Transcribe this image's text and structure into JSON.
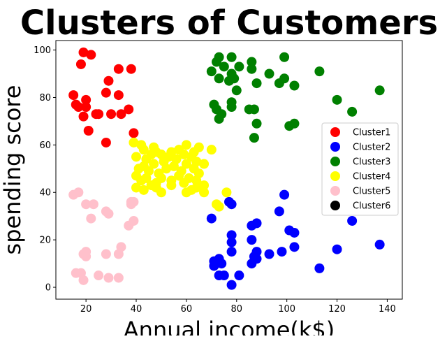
{
  "chart_data": {
    "type": "scatter",
    "title": "Clusters of Customers",
    "xlabel": "Annual income(k$)",
    "ylabel": "spending score",
    "xlim": [
      8,
      146
    ],
    "ylim": [
      -5,
      104
    ],
    "xticks": [
      20,
      40,
      60,
      80,
      100,
      120,
      140
    ],
    "yticks": [
      0,
      20,
      40,
      60,
      80,
      100
    ],
    "grid": false,
    "legend_position": "right",
    "series": [
      {
        "name": "Cluster1",
        "color": "#ff0000",
        "points": [
          [
            19,
            99
          ],
          [
            22,
            98
          ],
          [
            18,
            94
          ],
          [
            33,
            92
          ],
          [
            38,
            92
          ],
          [
            29,
            87
          ],
          [
            33,
            81
          ],
          [
            15,
            81
          ],
          [
            20,
            79
          ],
          [
            28,
            82
          ],
          [
            16,
            77
          ],
          [
            17,
            76
          ],
          [
            20,
            76
          ],
          [
            24,
            73
          ],
          [
            25,
            73
          ],
          [
            30,
            73
          ],
          [
            34,
            73
          ],
          [
            37,
            75
          ],
          [
            19,
            72
          ],
          [
            21,
            66
          ],
          [
            39,
            65
          ],
          [
            28,
            61
          ]
        ]
      },
      {
        "name": "Cluster2",
        "color": "#0000ff",
        "points": [
          [
            70,
            29
          ],
          [
            77,
            36
          ],
          [
            78,
            35
          ],
          [
            99,
            39
          ],
          [
            97,
            32
          ],
          [
            86,
            26
          ],
          [
            88,
            27
          ],
          [
            126,
            28
          ],
          [
            101,
            24
          ],
          [
            103,
            23
          ],
          [
            78,
            22
          ],
          [
            78,
            19
          ],
          [
            78,
            15
          ],
          [
            86,
            20
          ],
          [
            88,
            15
          ],
          [
            88,
            12
          ],
          [
            93,
            14
          ],
          [
            98,
            15
          ],
          [
            103,
            17
          ],
          [
            120,
            16
          ],
          [
            137,
            18
          ],
          [
            71,
            11
          ],
          [
            73,
            12
          ],
          [
            71,
            9
          ],
          [
            74,
            10
          ],
          [
            86,
            10
          ],
          [
            87,
            13
          ],
          [
            73,
            5
          ],
          [
            75,
            5
          ],
          [
            81,
            5
          ],
          [
            113,
            8
          ],
          [
            78,
            1
          ]
        ]
      },
      {
        "name": "Cluster3",
        "color": "#008000",
        "points": [
          [
            73,
            97
          ],
          [
            78,
            97
          ],
          [
            99,
            97
          ],
          [
            72,
            95
          ],
          [
            86,
            95
          ],
          [
            75,
            93
          ],
          [
            81,
            93
          ],
          [
            70,
            91
          ],
          [
            86,
            92
          ],
          [
            93,
            90
          ],
          [
            113,
            91
          ],
          [
            99,
            88
          ],
          [
            78,
            90
          ],
          [
            79,
            88
          ],
          [
            73,
            88
          ],
          [
            77,
            87
          ],
          [
            88,
            86
          ],
          [
            97,
            86
          ],
          [
            103,
            85
          ],
          [
            80,
            83
          ],
          [
            120,
            79
          ],
          [
            137,
            83
          ],
          [
            71,
            77
          ],
          [
            78,
            78
          ],
          [
            72,
            75
          ],
          [
            78,
            76
          ],
          [
            85,
            75
          ],
          [
            87,
            75
          ],
          [
            74,
            73
          ],
          [
            126,
            74
          ],
          [
            73,
            71
          ],
          [
            88,
            69
          ],
          [
            101,
            68
          ],
          [
            103,
            69
          ],
          [
            87,
            63
          ]
        ]
      },
      {
        "name": "Cluster4",
        "color": "#ffff00",
        "points": [
          [
            39,
            61
          ],
          [
            42,
            60
          ],
          [
            43,
            58
          ],
          [
            47,
            59
          ],
          [
            50,
            56
          ],
          [
            54,
            57
          ],
          [
            57,
            58
          ],
          [
            60,
            60
          ],
          [
            63,
            57
          ],
          [
            65,
            59
          ],
          [
            70,
            58
          ],
          [
            40,
            55
          ],
          [
            44,
            54
          ],
          [
            46,
            56
          ],
          [
            48,
            57
          ],
          [
            51,
            53
          ],
          [
            53,
            55
          ],
          [
            56,
            54
          ],
          [
            59,
            56
          ],
          [
            62,
            55
          ],
          [
            64,
            53
          ],
          [
            67,
            52
          ],
          [
            41,
            50
          ],
          [
            43,
            51
          ],
          [
            45,
            49
          ],
          [
            47,
            52
          ],
          [
            49,
            48
          ],
          [
            52,
            50
          ],
          [
            55,
            51
          ],
          [
            58,
            49
          ],
          [
            60,
            52
          ],
          [
            63,
            50
          ],
          [
            65,
            48
          ],
          [
            40,
            47
          ],
          [
            42,
            45
          ],
          [
            44,
            46
          ],
          [
            48,
            44
          ],
          [
            50,
            46
          ],
          [
            54,
            45
          ],
          [
            57,
            47
          ],
          [
            59,
            44
          ],
          [
            61,
            46
          ],
          [
            64,
            45
          ],
          [
            67,
            43
          ],
          [
            40,
            42
          ],
          [
            43,
            41
          ],
          [
            46,
            43
          ],
          [
            48,
            42
          ],
          [
            50,
            40
          ],
          [
            54,
            43
          ],
          [
            60,
            40
          ],
          [
            62,
            41
          ],
          [
            64,
            42
          ],
          [
            67,
            40
          ],
          [
            72,
            35
          ],
          [
            73,
            34
          ],
          [
            76,
            40
          ]
        ]
      },
      {
        "name": "Cluster5",
        "color": "#ffc0cb",
        "points": [
          [
            15,
            39
          ],
          [
            17,
            40
          ],
          [
            38,
            36
          ],
          [
            39,
            36
          ],
          [
            38,
            35
          ],
          [
            20,
            35
          ],
          [
            23,
            35
          ],
          [
            28,
            32
          ],
          [
            29,
            31
          ],
          [
            22,
            29
          ],
          [
            39,
            28
          ],
          [
            37,
            26
          ],
          [
            20,
            15
          ],
          [
            19,
            14
          ],
          [
            20,
            13
          ],
          [
            28,
            14
          ],
          [
            33,
            14
          ],
          [
            34,
            17
          ],
          [
            16,
            6
          ],
          [
            18,
            6
          ],
          [
            19,
            3
          ],
          [
            25,
            5
          ],
          [
            29,
            4
          ],
          [
            33,
            4
          ]
        ]
      },
      {
        "name": "Cluster6",
        "color": "#000000",
        "points": []
      }
    ]
  }
}
